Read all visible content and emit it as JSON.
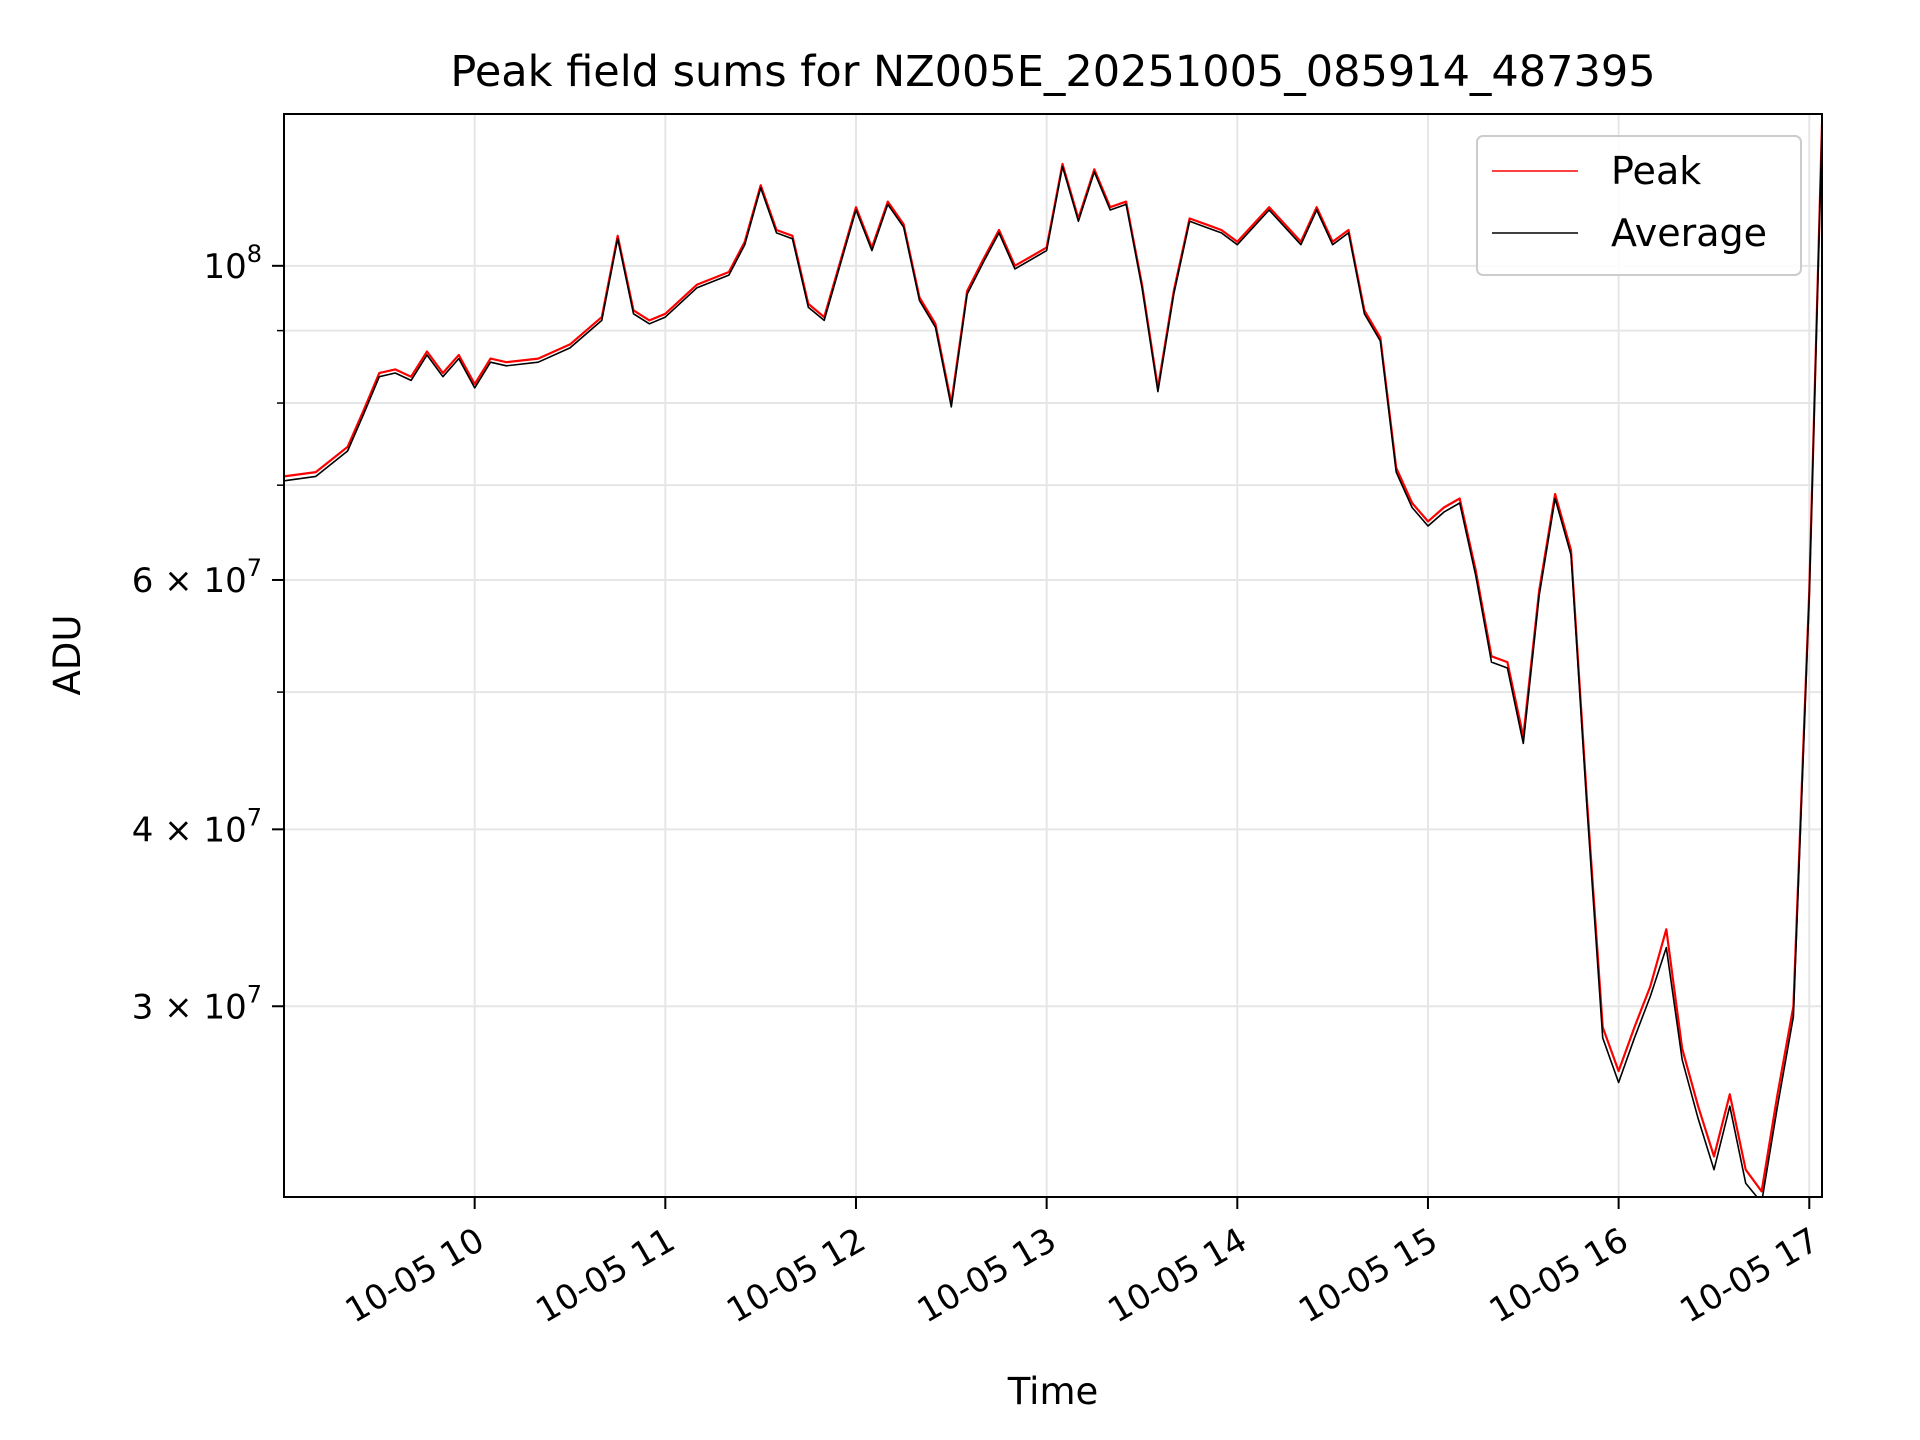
{
  "chart_data": {
    "type": "line",
    "title": "Peak field sums for NZ005E_20251005_085914_487395",
    "xlabel": "Time",
    "ylabel": "ADU",
    "yscale": "log",
    "xlim": [
      "10-05 09:00",
      "10-05 17:04"
    ],
    "ylim": [
      22000000,
      128000000
    ],
    "grid": true,
    "legend": {
      "position": "top-right",
      "entries": [
        "Peak",
        "Average"
      ]
    },
    "x_ticks": [
      "10-05 10",
      "10-05 11",
      "10-05 12",
      "10-05 13",
      "10-05 14",
      "10-05 15",
      "10-05 16",
      "10-05 17"
    ],
    "y_ticks_major": [
      {
        "value": 30000000,
        "mantissa": "3",
        "base": "10",
        "exp": "7"
      },
      {
        "value": 40000000,
        "mantissa": "4",
        "base": "10",
        "exp": "7"
      },
      {
        "value": 60000000,
        "mantissa": "6",
        "base": "10",
        "exp": "7"
      },
      {
        "value": 100000000,
        "mantissa": "",
        "base": "10",
        "exp": "8"
      }
    ],
    "y_ticks_minor": [
      50000000,
      70000000,
      80000000,
      90000000
    ],
    "x": [
      "09:00",
      "09:10",
      "09:20",
      "09:25",
      "09:30",
      "09:35",
      "09:40",
      "09:45",
      "09:50",
      "09:55",
      "10:00",
      "10:05",
      "10:10",
      "10:20",
      "10:30",
      "10:40",
      "10:45",
      "10:50",
      "10:55",
      "11:00",
      "11:10",
      "11:20",
      "11:25",
      "11:30",
      "11:35",
      "11:40",
      "11:45",
      "11:50",
      "12:00",
      "12:05",
      "12:10",
      "12:15",
      "12:20",
      "12:25",
      "12:30",
      "12:35",
      "12:40",
      "12:45",
      "12:50",
      "13:00",
      "13:05",
      "13:10",
      "13:15",
      "13:20",
      "13:25",
      "13:30",
      "13:35",
      "13:40",
      "13:45",
      "13:50",
      "13:55",
      "14:00",
      "14:10",
      "14:20",
      "14:25",
      "14:30",
      "14:35",
      "14:40",
      "14:45",
      "14:50",
      "14:55",
      "15:00",
      "15:05",
      "15:10",
      "15:15",
      "15:20",
      "15:25",
      "15:30",
      "15:35",
      "15:40",
      "15:45",
      "15:50",
      "15:55",
      "16:00",
      "16:05",
      "16:10",
      "16:15",
      "16:20",
      "16:25",
      "16:30",
      "16:35",
      "16:40",
      "16:45",
      "16:50",
      "16:55",
      "17:00",
      "17:04"
    ],
    "series": [
      {
        "name": "Peak",
        "color": "#ff0000",
        "values": [
          71000000,
          71500000,
          74500000,
          79000000,
          84000000,
          84500000,
          83500000,
          87000000,
          84000000,
          86500000,
          82500000,
          86000000,
          85500000,
          86000000,
          88000000,
          92000000,
          105000000,
          93000000,
          91500000,
          92500000,
          97000000,
          99000000,
          104000000,
          114000000,
          106000000,
          105000000,
          94000000,
          92000000,
          110000000,
          103000000,
          111000000,
          107000000,
          95000000,
          91000000,
          80000000,
          96000000,
          101000000,
          106000000,
          100000000,
          103000000,
          118000000,
          108000000,
          117000000,
          110000000,
          111000000,
          97000000,
          82000000,
          96000000,
          108000000,
          107000000,
          106000000,
          104000000,
          110000000,
          104000000,
          110000000,
          104000000,
          106000000,
          93000000,
          89000000,
          72000000,
          68000000,
          66000000,
          67500000,
          68500000,
          61000000,
          53000000,
          52500000,
          46500000,
          59000000,
          69000000,
          63000000,
          42000000,
          29000000,
          27000000,
          29000000,
          31000000,
          34000000,
          28000000,
          25500000,
          23500000,
          26000000,
          23000000,
          22200000,
          26000000,
          30000000,
          59000000,
          126000000
        ]
      },
      {
        "name": "Average",
        "color": "#000000",
        "values": [
          70500000,
          71000000,
          74000000,
          78500000,
          83500000,
          84000000,
          83000000,
          86500000,
          83500000,
          86000000,
          82000000,
          85500000,
          85000000,
          85500000,
          87500000,
          91500000,
          104500000,
          92500000,
          91000000,
          92000000,
          96500000,
          98500000,
          103500000,
          113500000,
          105500000,
          104500000,
          93500000,
          91500000,
          109500000,
          102500000,
          110500000,
          106500000,
          94500000,
          90500000,
          79500000,
          95500000,
          100500000,
          105500000,
          99500000,
          102500000,
          117500000,
          107500000,
          116500000,
          109500000,
          110500000,
          96500000,
          81500000,
          95500000,
          107500000,
          106500000,
          105500000,
          103500000,
          109500000,
          103500000,
          109500000,
          103500000,
          105500000,
          92500000,
          88500000,
          71500000,
          67500000,
          65500000,
          67000000,
          68000000,
          60500000,
          52500000,
          52000000,
          46000000,
          58500000,
          68500000,
          62500000,
          41500000,
          28500000,
          26500000,
          28500000,
          30500000,
          33000000,
          27500000,
          25000000,
          23000000,
          25500000,
          22500000,
          21800000,
          25500000,
          29500000,
          58500000,
          125000000
        ]
      }
    ]
  }
}
